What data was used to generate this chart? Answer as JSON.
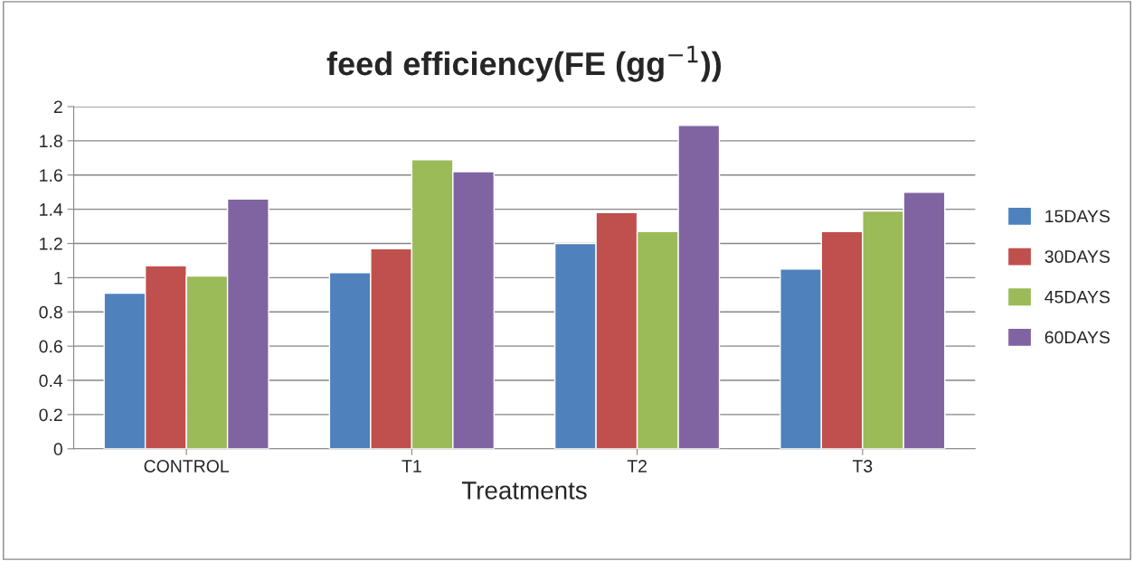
{
  "chart_data": {
    "type": "bar",
    "title": "feed efficiency(FE (gg$^{−1}$))",
    "xlabel": "Treatments",
    "categories": [
      "CONTROL",
      "T1",
      "T2",
      "T3"
    ],
    "series": [
      {
        "name": "15DAYS",
        "color": "#4f81bd",
        "values": [
          0.91,
          1.03,
          1.2,
          1.05
        ]
      },
      {
        "name": "30DAYS",
        "color": "#c0504d",
        "values": [
          1.07,
          1.17,
          1.38,
          1.27
        ]
      },
      {
        "name": "45DAYS",
        "color": "#9bbb59",
        "values": [
          1.01,
          1.69,
          1.27,
          1.39
        ]
      },
      {
        "name": "60DAYS",
        "color": "#8064a2",
        "values": [
          1.46,
          1.62,
          1.89,
          1.5
        ]
      }
    ],
    "ylim": [
      0,
      2
    ],
    "yticks": [
      0,
      0.2,
      0.4,
      0.6,
      0.8,
      1,
      1.2,
      1.4,
      1.6,
      1.8,
      2
    ],
    "grid": "y",
    "legend": "right"
  }
}
